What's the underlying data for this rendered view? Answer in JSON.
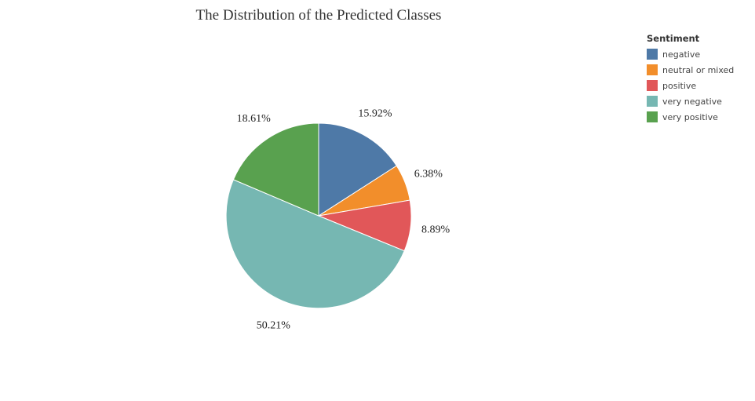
{
  "chart_data": {
    "type": "pie",
    "title": "The Distribution of the Predicted Classes",
    "legend": {
      "title": "Sentiment",
      "position": "top-right"
    },
    "slices": [
      {
        "label": "negative",
        "value": 15.92,
        "text": "15.92%",
        "color": "#4e79a7"
      },
      {
        "label": "neutral or mixed",
        "value": 6.38,
        "text": "6.38%",
        "color": "#f28e2b"
      },
      {
        "label": "positive",
        "value": 8.89,
        "text": "8.89%",
        "color": "#e15759"
      },
      {
        "label": "very negative",
        "value": 50.21,
        "text": "50.21%",
        "color": "#76b7b2"
      },
      {
        "label": "very positive",
        "value": 18.61,
        "text": "18.61%",
        "color": "#59a14f"
      }
    ]
  }
}
